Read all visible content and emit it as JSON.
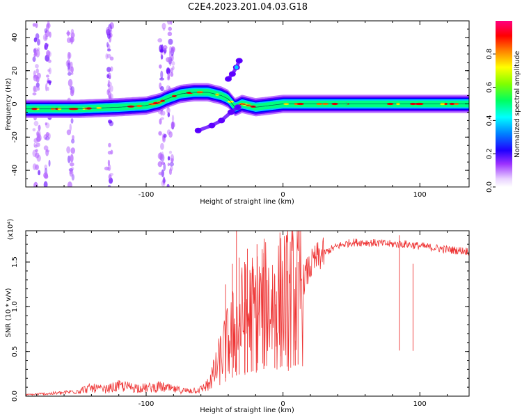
{
  "title": "C2E4.2023.201.04.03.G18",
  "chart_data": [
    {
      "type": "heatmap",
      "xlabel": "Height of straight line (km)",
      "ylabel": "Frequency (Hz)",
      "xlim": [
        -188,
        136
      ],
      "ylim": [
        -50,
        50
      ],
      "x_ticks": [
        -100,
        0,
        100
      ],
      "x_tick_labels": [
        "-100",
        "0",
        "100"
      ],
      "y_ticks": [
        -40,
        -20,
        0,
        20,
        40
      ],
      "y_tick_labels": [
        "-40",
        "-20",
        "0",
        "20",
        "40"
      ],
      "colorbar": {
        "label": "Normalized spectral amplitude",
        "range": [
          0,
          1
        ],
        "ticks": [
          0.0,
          0.2,
          0.4,
          0.6,
          0.8
        ],
        "tick_labels": [
          "0.0",
          "0.2",
          "0.4",
          "0.6",
          "0.8"
        ],
        "colormap": [
          "#ffffff",
          "#b566ff",
          "#6000ff",
          "#0000ff",
          "#00c8ff",
          "#00ff80",
          "#ffff00",
          "#ff8000",
          "#ff0000",
          "#ff0080"
        ]
      },
      "carrier_track": [
        {
          "x": -188,
          "y": -3
        },
        {
          "x": -150,
          "y": -3
        },
        {
          "x": -120,
          "y": -2
        },
        {
          "x": -100,
          "y": -1
        },
        {
          "x": -90,
          "y": 1
        },
        {
          "x": -85,
          "y": 3
        },
        {
          "x": -75,
          "y": 6
        },
        {
          "x": -65,
          "y": 7
        },
        {
          "x": -55,
          "y": 7
        },
        {
          "x": -45,
          "y": 5
        },
        {
          "x": -40,
          "y": 3
        },
        {
          "x": -35,
          "y": -2
        },
        {
          "x": -30,
          "y": 0
        },
        {
          "x": -20,
          "y": -2
        },
        {
          "x": -10,
          "y": -1
        },
        {
          "x": 0,
          "y": 0
        },
        {
          "x": 20,
          "y": 0
        },
        {
          "x": 60,
          "y": 0
        },
        {
          "x": 100,
          "y": 0
        },
        {
          "x": 136,
          "y": 0
        }
      ],
      "upper_branch": [
        {
          "x": -40,
          "y": 15
        },
        {
          "x": -37,
          "y": 18
        },
        {
          "x": -34,
          "y": 22
        },
        {
          "x": -32,
          "y": 26
        }
      ],
      "lower_branch": [
        {
          "x": -62,
          "y": -16
        },
        {
          "x": -52,
          "y": -13
        },
        {
          "x": -45,
          "y": -10
        },
        {
          "x": -38,
          "y": -5
        },
        {
          "x": -33,
          "y": -2
        }
      ],
      "noise_columns_x": [
        -180,
        -172,
        -155,
        -127,
        -88,
        -82
      ]
    },
    {
      "type": "line",
      "xlabel": "Height of straight line (km)",
      "ylabel": "SNR (10 * v/v)",
      "y_multiplier": "(x10⁴)",
      "xlim": [
        -188,
        136
      ],
      "ylim": [
        0,
        1.85
      ],
      "x_ticks": [
        -100,
        0,
        100
      ],
      "x_tick_labels": [
        "-100",
        "0",
        "100"
      ],
      "y_ticks": [
        0,
        0.5,
        1.0,
        1.5
      ],
      "y_tick_labels": [
        "0.0",
        "0.5",
        "1.0",
        "1.5"
      ],
      "color": "#ee3333",
      "envelope": [
        {
          "x": -188,
          "y": 0.02
        },
        {
          "x": -160,
          "y": 0.05
        },
        {
          "x": -150,
          "y": 0.08
        },
        {
          "x": -140,
          "y": 0.12
        },
        {
          "x": -130,
          "y": 0.1
        },
        {
          "x": -120,
          "y": 0.15
        },
        {
          "x": -110,
          "y": 0.13
        },
        {
          "x": -100,
          "y": 0.12
        },
        {
          "x": -90,
          "y": 0.14
        },
        {
          "x": -80,
          "y": 0.1
        },
        {
          "x": -70,
          "y": 0.08
        },
        {
          "x": -60,
          "y": 0.1
        },
        {
          "x": -50,
          "y": 0.25
        },
        {
          "x": -45,
          "y": 0.45
        },
        {
          "x": -40,
          "y": 0.6
        },
        {
          "x": -35,
          "y": 0.75
        },
        {
          "x": -30,
          "y": 0.85
        },
        {
          "x": -25,
          "y": 0.9
        },
        {
          "x": -20,
          "y": 0.95
        },
        {
          "x": -15,
          "y": 1.0
        },
        {
          "x": -10,
          "y": 1.05
        },
        {
          "x": -5,
          "y": 1.05
        },
        {
          "x": 0,
          "y": 1.1
        },
        {
          "x": 5,
          "y": 1.1
        },
        {
          "x": 10,
          "y": 1.15
        },
        {
          "x": 15,
          "y": 1.3
        },
        {
          "x": 20,
          "y": 1.45
        },
        {
          "x": 25,
          "y": 1.55
        },
        {
          "x": 30,
          "y": 1.6
        },
        {
          "x": 40,
          "y": 1.68
        },
        {
          "x": 50,
          "y": 1.72
        },
        {
          "x": 60,
          "y": 1.72
        },
        {
          "x": 70,
          "y": 1.71
        },
        {
          "x": 80,
          "y": 1.7
        },
        {
          "x": 90,
          "y": 1.7
        },
        {
          "x": 100,
          "y": 1.68
        },
        {
          "x": 110,
          "y": 1.66
        },
        {
          "x": 120,
          "y": 1.64
        },
        {
          "x": 136,
          "y": 1.62
        }
      ],
      "spikes": [
        {
          "x": -42,
          "y": 1.25
        },
        {
          "x": -37,
          "y": 1.48
        },
        {
          "x": -34,
          "y": 1.85
        },
        {
          "x": -32,
          "y": 1.55
        },
        {
          "x": -28,
          "y": 1.5
        },
        {
          "x": -26,
          "y": 1.65
        },
        {
          "x": -22,
          "y": 1.45
        },
        {
          "x": -19,
          "y": 1.7
        },
        {
          "x": -14,
          "y": 1.6
        },
        {
          "x": -6,
          "y": 1.35
        },
        {
          "x": -2,
          "y": 1.3
        },
        {
          "x": 3,
          "y": 1.4
        },
        {
          "x": 9,
          "y": 0.62
        },
        {
          "x": 11,
          "y": 1.5
        },
        {
          "x": 85,
          "y": 1.8
        },
        {
          "x": 95,
          "y": 1.48
        }
      ]
    }
  ]
}
